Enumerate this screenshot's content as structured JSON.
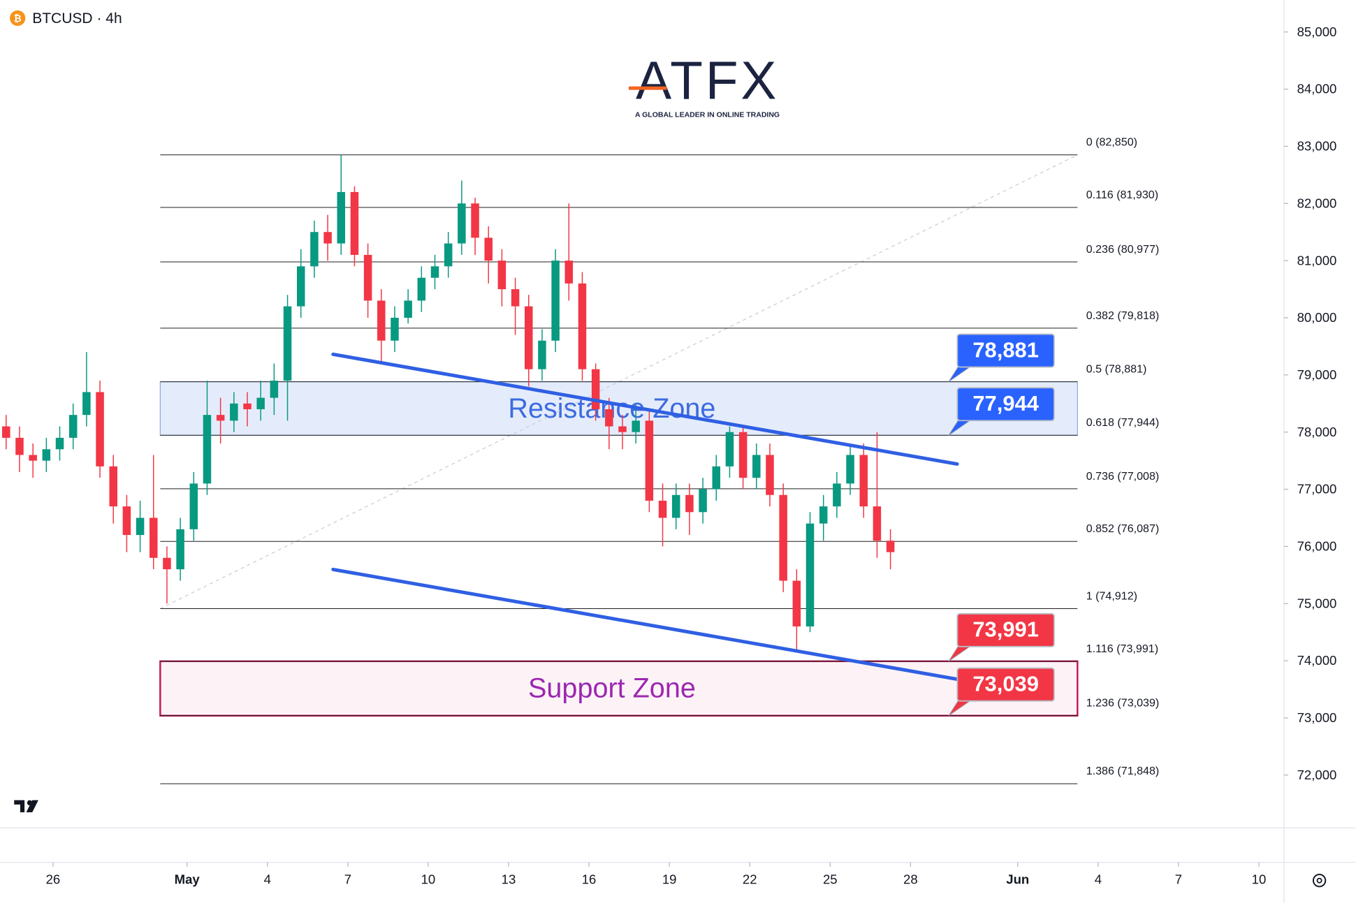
{
  "chart_data": {
    "type": "candlestick",
    "title": "BTCUSD · 4h",
    "logo": {
      "name": "ATFX",
      "tagline": "A GLOBAL LEADER IN ONLINE TRADING"
    },
    "xlim": [
      -1.968,
      45.935
    ],
    "ylim": [
      71077,
      85559
    ],
    "xticks": [
      {
        "value": 0,
        "label": "26"
      },
      {
        "value": 5,
        "label": "May"
      },
      {
        "value": 8,
        "label": "4"
      },
      {
        "value": 11,
        "label": "7"
      },
      {
        "value": 14,
        "label": "10"
      },
      {
        "value": 17,
        "label": "13"
      },
      {
        "value": 20,
        "label": "16"
      },
      {
        "value": 23,
        "label": "19"
      },
      {
        "value": 26,
        "label": "22"
      },
      {
        "value": 29,
        "label": "25"
      },
      {
        "value": 32,
        "label": "28"
      },
      {
        "value": 36,
        "label": "Jun"
      },
      {
        "value": 39,
        "label": "4"
      },
      {
        "value": 42,
        "label": "7"
      },
      {
        "value": 45,
        "label": "10"
      }
    ],
    "yticks": [
      {
        "value": 85000,
        "label": "85,000"
      },
      {
        "value": 84000,
        "label": "84,000"
      },
      {
        "value": 83000,
        "label": "83,000"
      },
      {
        "value": 82000,
        "label": "82,000"
      },
      {
        "value": 81000,
        "label": "81,000"
      },
      {
        "value": 80000,
        "label": "80,000"
      },
      {
        "value": 79000,
        "label": "79,000"
      },
      {
        "value": 78000,
        "label": "78,000"
      },
      {
        "value": 77000,
        "label": "77,000"
      },
      {
        "value": 76000,
        "label": "76,000"
      },
      {
        "value": 75000,
        "label": "75,000"
      },
      {
        "value": 74000,
        "label": "74,000"
      },
      {
        "value": 73000,
        "label": "73,000"
      },
      {
        "value": 72000,
        "label": "72,000"
      }
    ],
    "up_color": "#089981",
    "down_color": "#f23645",
    "x": [
      -1.75,
      -1.25,
      -0.75,
      -0.25,
      0.25,
      0.75,
      1.25,
      1.75,
      2.25,
      2.75,
      3.25,
      3.75,
      4.25,
      4.75,
      5.25,
      5.75,
      6.25,
      6.75,
      7.25,
      7.75,
      8.25,
      8.75,
      9.25,
      9.75,
      10.25,
      10.75,
      11.25,
      11.75,
      12.25,
      12.75,
      13.25,
      13.75,
      14.25,
      14.75,
      15.25,
      15.75,
      16.25,
      16.75,
      17.25,
      17.75,
      18.25,
      18.75,
      19.25,
      19.75,
      20.25,
      20.75,
      21.25,
      21.75,
      22.25,
      22.75,
      23.25,
      23.75,
      24.25,
      24.75,
      25.25,
      25.75,
      26.25,
      26.75,
      27.25,
      27.75,
      28.25,
      28.75,
      29.25,
      29.75,
      30.25,
      30.75,
      31.25
    ],
    "open": [
      78100,
      77900,
      77600,
      77500,
      77700,
      77900,
      78300,
      78700,
      77400,
      76700,
      76200,
      76500,
      75800,
      75600,
      76300,
      77100,
      78300,
      78200,
      78500,
      78400,
      78600,
      78900,
      80200,
      80900,
      81500,
      81300,
      82200,
      81100,
      80300,
      79600,
      80000,
      80300,
      80700,
      80900,
      81300,
      82000,
      81400,
      81000,
      80500,
      80200,
      79100,
      79600,
      81000,
      80600,
      79100,
      78400,
      78100,
      78000,
      78200,
      76800,
      76500,
      76900,
      76600,
      77000,
      77400,
      78000,
      77200,
      77600,
      76900,
      75400,
      74600,
      76400,
      76700,
      77100,
      77600,
      76700,
      76100
    ],
    "high": [
      78300,
      78100,
      77800,
      77900,
      78100,
      78500,
      79400,
      78900,
      77600,
      76900,
      76800,
      77600,
      76000,
      76500,
      77300,
      78900,
      78600,
      78700,
      78700,
      78900,
      79200,
      80400,
      81200,
      81700,
      81800,
      82850,
      82300,
      81300,
      80500,
      80200,
      80500,
      80900,
      81100,
      81500,
      82400,
      82100,
      81600,
      81200,
      80700,
      80400,
      79800,
      81200,
      82000,
      80800,
      79200,
      78600,
      78300,
      78500,
      78400,
      77100,
      77100,
      77100,
      77200,
      77600,
      78100,
      78100,
      77800,
      77800,
      77100,
      75600,
      76600,
      76900,
      77300,
      77800,
      77800,
      78000,
      76300
    ],
    "low": [
      77700,
      77300,
      77200,
      77300,
      77500,
      77700,
      78100,
      77200,
      76400,
      75900,
      75900,
      75600,
      75000,
      75400,
      76100,
      76900,
      77800,
      78000,
      78100,
      78200,
      78300,
      78200,
      80000,
      80700,
      81000,
      81100,
      80900,
      80000,
      79200,
      79400,
      79900,
      80100,
      80500,
      80700,
      81100,
      81100,
      80600,
      80200,
      79700,
      78800,
      78900,
      79400,
      80300,
      78900,
      78200,
      77700,
      77700,
      77800,
      76600,
      76000,
      76300,
      76200,
      76400,
      76800,
      77200,
      77000,
      77000,
      76700,
      75200,
      74200,
      74500,
      76100,
      76500,
      76900,
      76500,
      75800,
      75600
    ],
    "close": [
      77900,
      77600,
      77500,
      77700,
      77900,
      78300,
      78700,
      77400,
      76700,
      76200,
      76500,
      75800,
      75600,
      76300,
      77100,
      78300,
      78200,
      78500,
      78400,
      78600,
      78900,
      80200,
      80900,
      81500,
      81300,
      82200,
      81100,
      80300,
      79600,
      80000,
      80300,
      80700,
      80900,
      81300,
      82000,
      81400,
      81000,
      80500,
      80200,
      79100,
      79600,
      81000,
      80600,
      79100,
      78400,
      78100,
      78000,
      78200,
      76800,
      76500,
      76900,
      76600,
      77000,
      77400,
      78000,
      77200,
      77600,
      76900,
      75400,
      74600,
      76400,
      76700,
      77100,
      77600,
      76700,
      76100,
      75900
    ],
    "fib_levels": {
      "x_range": [
        4,
        38.23
      ],
      "values": [
        82850,
        81930,
        80977,
        79818,
        78881,
        77944,
        77008,
        76087,
        74912,
        73991,
        73039,
        71848
      ],
      "value_labels": [
        "0 (82,850)",
        "0.116 (81,930)",
        "0.236 (80,977)",
        "0.382 (79,818)",
        "0.5 (78,881)",
        "0.618 (77,944)",
        "0.736 (77,008)",
        "0.852 (76,087)",
        "1 (74,912)",
        "1.116 (73,991)",
        "1.236 (73,039)",
        "1.386 (71,848)"
      ]
    },
    "zones": [
      {
        "name": "Resistance Zone",
        "values": [
          78881,
          77944
        ],
        "color": "#3d6be0"
      },
      {
        "name": "Support Zone",
        "values": [
          73991,
          73039
        ],
        "color": "#9c27b0"
      }
    ],
    "trendlines": {
      "color": "#2f5fe3",
      "lines": [
        {
          "x": [
            10.45,
            33.74
          ],
          "values": [
            79361,
            77441
          ]
        },
        {
          "x": [
            10.45,
            33.74
          ],
          "values": [
            75597,
            73677
          ]
        }
      ]
    },
    "price_tags": {
      "values": [
        78881,
        77944,
        73991,
        73039
      ],
      "value_labels": [
        "78,881",
        "77,944",
        "73,991",
        "73,039"
      ],
      "colors": [
        "#2962ff",
        "#2962ff",
        "#f23645",
        "#f23645"
      ]
    }
  }
}
